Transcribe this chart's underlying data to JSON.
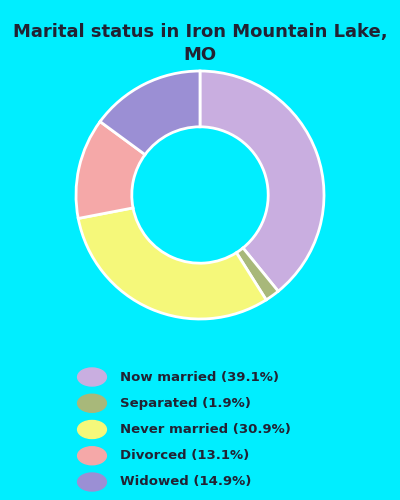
{
  "title": "Marital status in Iron Mountain Lake,\nMO",
  "slices": [
    39.1,
    1.9,
    30.9,
    13.1,
    14.9
  ],
  "colors": [
    "#c9aee0",
    "#a8b87a",
    "#f5f87a",
    "#f5a8a8",
    "#9b8fd4"
  ],
  "labels": [
    "Now married (39.1%)",
    "Separated (1.9%)",
    "Never married (30.9%)",
    "Divorced (13.1%)",
    "Widowed (14.9%)"
  ],
  "legend_colors": [
    "#c9aee0",
    "#a8b87a",
    "#f5f87a",
    "#f5a8a8",
    "#9b8fd4"
  ],
  "background_color": "#00eeff",
  "title_fontsize": 13,
  "donut_width": 0.45,
  "startangle": 90
}
